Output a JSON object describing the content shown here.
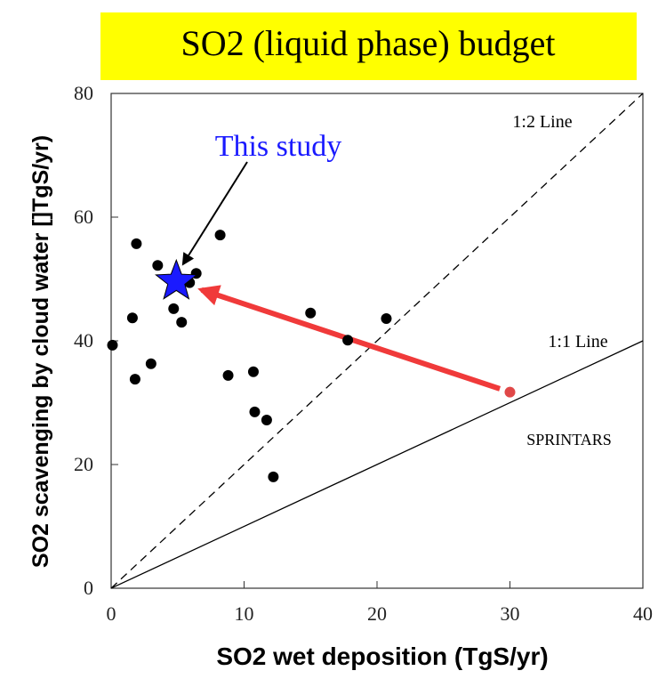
{
  "chart_data": {
    "type": "scatter",
    "title": "SO2 (liquid phase) budget",
    "xlabel": "SO2 wet deposition (TgS/yr)",
    "ylabel": "SO2 scavenging by cloud water []TgS/yr)",
    "xlim": [
      0,
      40
    ],
    "ylim": [
      0,
      80
    ],
    "xticks": [
      0,
      10,
      20,
      30,
      40
    ],
    "yticks": [
      0,
      20,
      40,
      60,
      80
    ],
    "series": [
      {
        "color": "#000000",
        "marker": "circle",
        "x": [
          0.1,
          1.9,
          1.6,
          1.8,
          3.0,
          3.5,
          4.7,
          5.3,
          5.9,
          6.4,
          8.2,
          8.8,
          10.7,
          10.8,
          11.7,
          12.2,
          15.0,
          17.8,
          20.7
        ],
        "values": [
          39.3,
          55.7,
          43.7,
          33.8,
          36.3,
          52.2,
          45.2,
          43.0,
          49.4,
          50.9,
          57.1,
          34.4,
          35.0,
          28.5,
          27.2,
          18.0,
          44.5,
          40.1,
          43.6
        ]
      },
      {
        "name": "SPRINTARS",
        "color": "#e04848",
        "marker": "circle",
        "x": [
          30.0
        ],
        "values": [
          31.7
        ]
      },
      {
        "name": "This study",
        "color": "#1a1aff",
        "marker": "star",
        "x": [
          4.9
        ],
        "values": [
          49.6
        ]
      },
      {
        "name": "1:2 Line",
        "color": "#000000",
        "line": "dashed",
        "x": [
          0,
          40
        ],
        "values": [
          0,
          80
        ]
      },
      {
        "name": "1:1 Line",
        "color": "#000000",
        "line": "solid",
        "x": [
          0,
          40
        ],
        "values": [
          0,
          40
        ]
      }
    ]
  }
}
